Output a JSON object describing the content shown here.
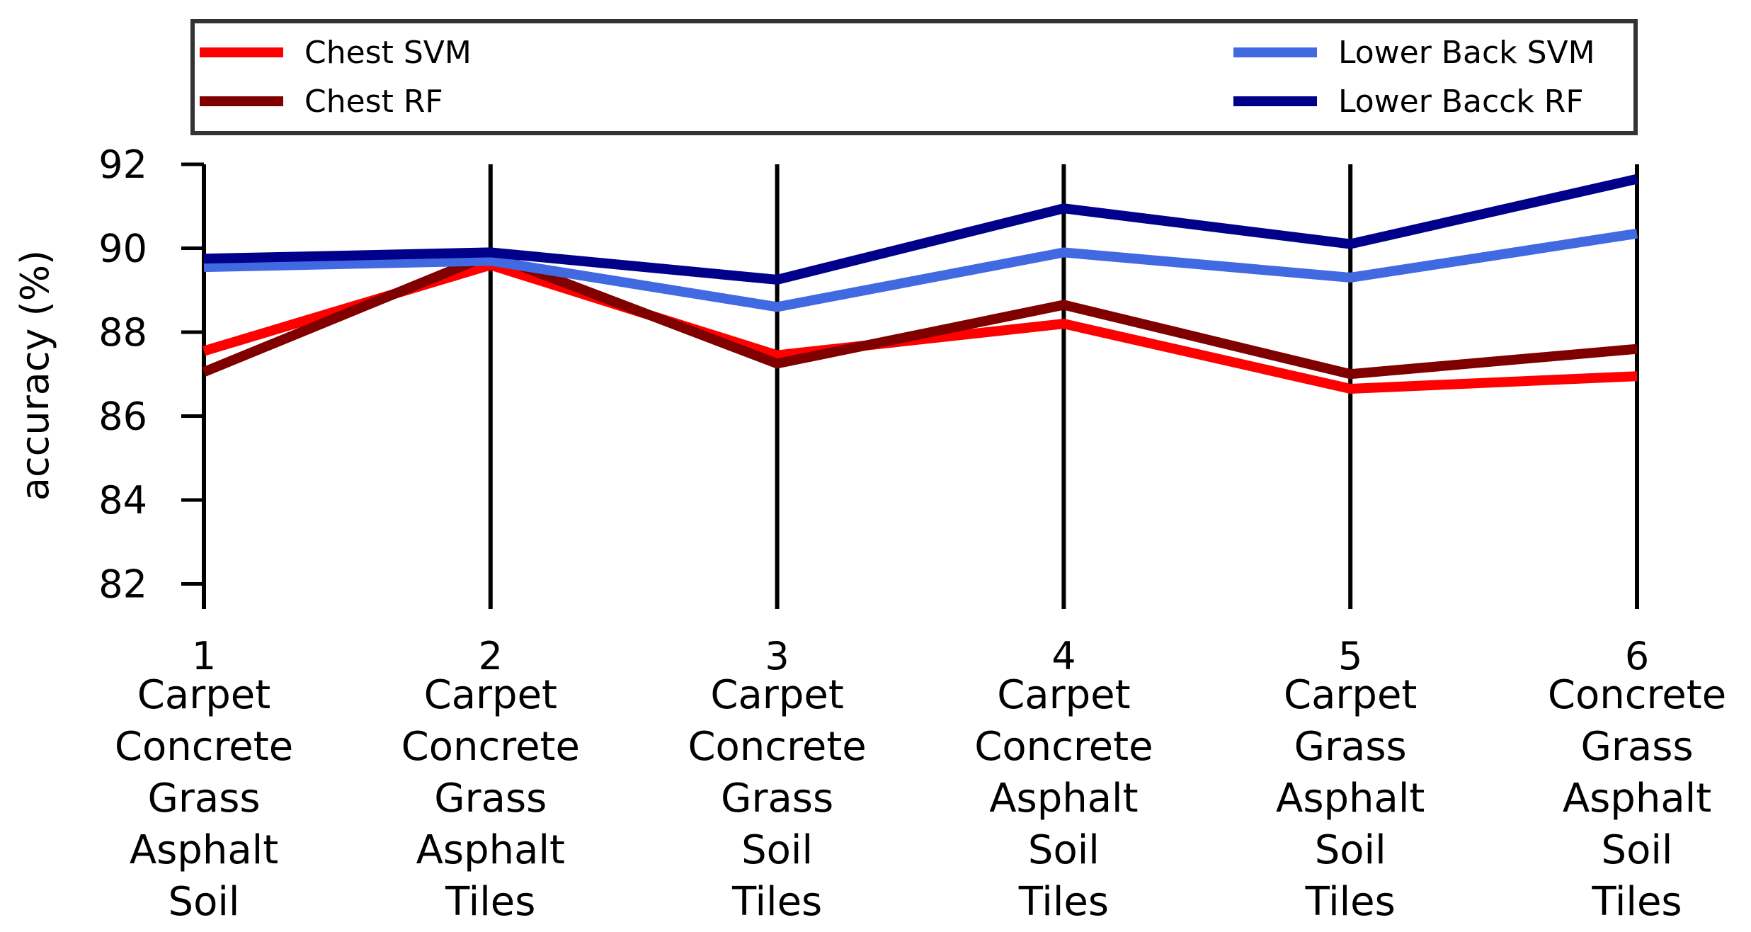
{
  "chart_data": {
    "type": "line",
    "title": "",
    "xlabel": "",
    "ylabel": "accuracy (%)",
    "ylim": [
      82,
      92
    ],
    "yticks": [
      82,
      84,
      86,
      88,
      90,
      92
    ],
    "grid": "vertical lines at each category",
    "legend_position": "top",
    "categories": [
      {
        "number": "1",
        "lines": [
          "Carpet",
          "Concrete",
          "Grass",
          "Asphalt",
          "Soil"
        ]
      },
      {
        "number": "2",
        "lines": [
          "Carpet",
          "Concrete",
          "Grass",
          "Asphalt",
          "Tiles"
        ]
      },
      {
        "number": "3",
        "lines": [
          "Carpet",
          "Concrete",
          "Grass",
          "Soil",
          "Tiles"
        ]
      },
      {
        "number": "4",
        "lines": [
          "Carpet",
          "Concrete",
          "Asphalt",
          "Soil",
          "Tiles"
        ]
      },
      {
        "number": "5",
        "lines": [
          "Carpet",
          "Grass",
          "Asphalt",
          "Soil",
          "Tiles"
        ]
      },
      {
        "number": "6",
        "lines": [
          "Concrete",
          "Grass",
          "Asphalt",
          "Soil",
          "Tiles"
        ]
      }
    ],
    "series": [
      {
        "name": "Chest SVM",
        "color": "#ff0000",
        "values": [
          87.55,
          89.6,
          87.45,
          88.2,
          86.65,
          86.95
        ]
      },
      {
        "name": "Chest RF",
        "color": "#800000",
        "values": [
          87.05,
          89.85,
          87.25,
          88.65,
          87.0,
          87.6
        ]
      },
      {
        "name": "Lower Back SVM",
        "color": "#4169e1",
        "values": [
          89.55,
          89.7,
          88.6,
          89.9,
          89.3,
          90.35
        ]
      },
      {
        "name": "Lower Bacck RF",
        "color": "#00008b",
        "values": [
          89.75,
          89.9,
          89.25,
          90.95,
          90.1,
          91.65
        ]
      }
    ]
  }
}
